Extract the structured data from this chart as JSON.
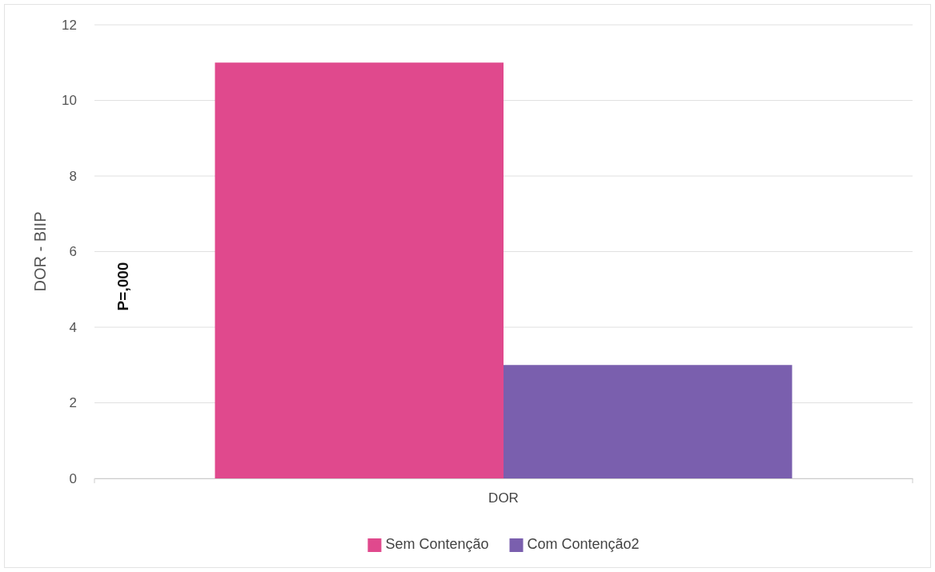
{
  "chart_data": {
    "type": "bar",
    "ylabel": "DOR - BIIP",
    "categories": [
      "DOR"
    ],
    "series": [
      {
        "name": "Sem Contenção",
        "color": "#e0498d",
        "values": [
          11
        ]
      },
      {
        "name": "Com Contenção2",
        "color": "#7a5fae",
        "values": [
          3
        ]
      }
    ],
    "ylim": [
      0,
      12
    ],
    "yticks": [
      0,
      2,
      4,
      6,
      8,
      10,
      12
    ],
    "grid": "y",
    "legend": "bottom",
    "annotations": [
      "P=,000"
    ]
  }
}
